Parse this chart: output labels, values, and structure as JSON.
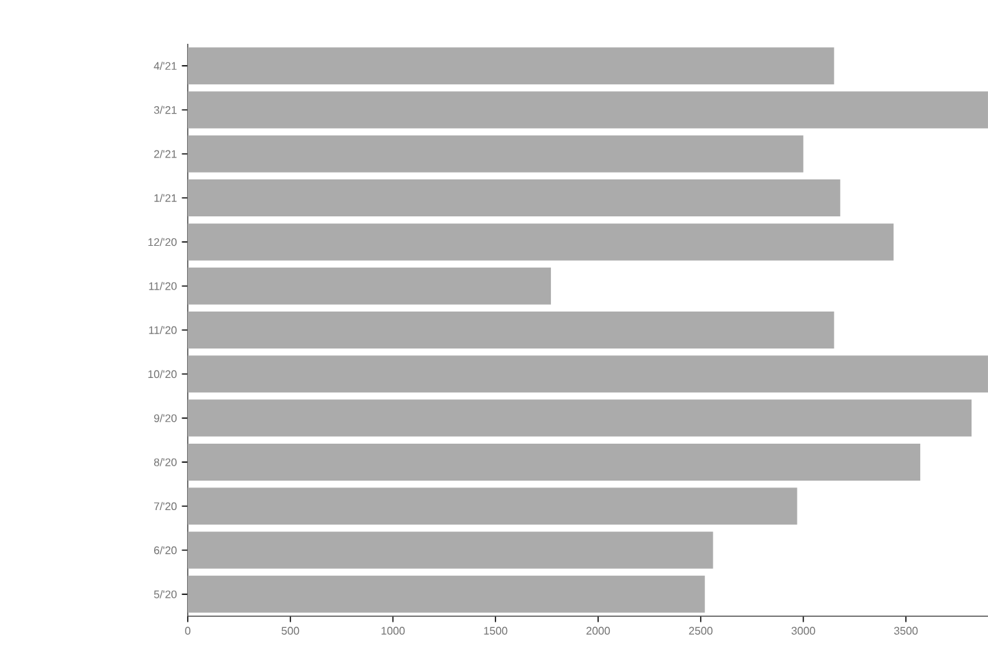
{
  "chart_data": {
    "type": "bar",
    "orientation": "horizontal",
    "categories": [
      "4/'21",
      "3/'21",
      "2/'21",
      "1/'21",
      "12/'20",
      "11/'20",
      "11/'20",
      "10/'20",
      "9/'20",
      "8/'20",
      "7/'20",
      "6/'20",
      "5/'20"
    ],
    "values": [
      3150,
      3900,
      3000,
      3180,
      3440,
      1770,
      3150,
      3900,
      3820,
      3570,
      2970,
      2560,
      2520
    ],
    "color": "#ababab",
    "xlim": [
      0,
      3900
    ],
    "xticks": [
      0,
      500,
      1000,
      1500,
      2000,
      2500,
      3000,
      3500
    ],
    "grid": false
  }
}
